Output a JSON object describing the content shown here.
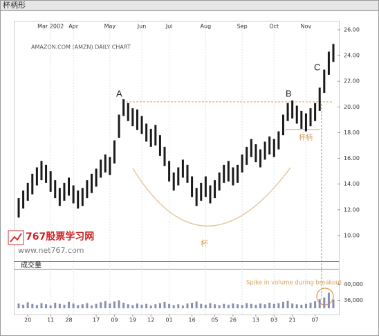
{
  "header": {
    "title": "杯柄形"
  },
  "chart_data": {
    "type": "ohlc",
    "title": "AMAZON.COM (AMZN) DAILY CHART",
    "xlim": [
      0,
      69
    ],
    "month_ticks": [
      {
        "value": 7,
        "label": "Mar 2002"
      },
      {
        "value": 12,
        "label": "Apr"
      },
      {
        "value": 20,
        "label": "May"
      },
      {
        "value": 27,
        "label": "Jun"
      },
      {
        "value": 33,
        "label": "Jul"
      },
      {
        "value": 41,
        "label": "Aug"
      },
      {
        "value": 49,
        "label": "Sep"
      },
      {
        "value": 56,
        "label": "Oct"
      },
      {
        "value": 63,
        "label": "Nov"
      }
    ],
    "xticks": [
      2,
      7,
      11,
      17,
      21,
      25,
      29,
      33,
      38,
      43,
      47,
      52,
      56,
      60,
      65
    ],
    "xtick_labels": [
      "20",
      "11",
      "28",
      "17",
      "09",
      "19",
      "12",
      "01",
      "16",
      "05",
      "26",
      "13",
      "03",
      "21",
      "07"
    ],
    "ylim": [
      9,
      26.5
    ],
    "yticks": [
      {
        "value": 10,
        "label": "10.00"
      },
      {
        "value": 12,
        "label": "12.00"
      },
      {
        "value": 14,
        "label": "14.00"
      },
      {
        "value": 16,
        "label": "16.00"
      },
      {
        "value": 18,
        "label": "18.00"
      },
      {
        "value": 20,
        "label": "20.00"
      },
      {
        "value": 22,
        "label": "22.00"
      },
      {
        "value": 24,
        "label": "24.00"
      },
      {
        "value": 26,
        "label": "26.00"
      }
    ],
    "grid": true,
    "color": "#1a1a1a",
    "high": [
      12.9,
      13.5,
      14.1,
      14.8,
      15.3,
      15.8,
      15.5,
      15.0,
      14.3,
      13.7,
      14.1,
      14.5,
      13.9,
      13.5,
      13.7,
      14.3,
      14.8,
      15.2,
      15.9,
      16.3,
      16.1,
      17.4,
      19.4,
      20.6,
      20.3,
      19.9,
      19.8,
      19.3,
      18.7,
      18.3,
      18.6,
      17.8,
      16.9,
      15.8,
      14.9,
      15.3,
      15.9,
      15.5,
      14.6,
      13.7,
      14.1,
      14.6,
      13.9,
      14.3,
      14.9,
      15.5,
      15.8,
      15.3,
      15.5,
      16.3,
      16.9,
      17.5,
      17.1,
      16.7,
      17.3,
      17.7,
      17.5,
      18.1,
      19.4,
      20.3,
      20.5,
      20.1,
      19.7,
      19.5,
      19.9,
      20.3,
      21.5,
      22.9,
      24.3,
      24.9
    ],
    "low": [
      11.4,
      12.1,
      12.7,
      13.2,
      13.9,
      14.3,
      14.1,
      13.4,
      12.9,
      12.3,
      12.7,
      13.1,
      12.5,
      12.1,
      12.3,
      12.9,
      13.3,
      13.8,
      14.5,
      14.9,
      14.7,
      15.6,
      17.6,
      19.3,
      18.9,
      18.5,
      18.2,
      17.9,
      17.3,
      16.9,
      17.0,
      16.2,
      15.4,
      14.2,
      13.5,
      13.9,
      14.5,
      14.1,
      13.0,
      12.3,
      12.7,
      13.0,
      12.5,
      12.9,
      13.5,
      14.1,
      14.2,
      13.9,
      14.1,
      14.9,
      15.5,
      16.1,
      15.7,
      15.3,
      15.9,
      16.3,
      16.1,
      16.7,
      17.8,
      18.9,
      19.1,
      18.7,
      18.3,
      18.1,
      18.5,
      18.9,
      19.7,
      21.1,
      22.5,
      23.5
    ],
    "volume_ylim": [
      34000,
      44000
    ],
    "volume_ticks": [
      {
        "value": 36000,
        "label": "36,000"
      },
      {
        "value": 40000,
        "label": "40,000"
      }
    ],
    "volume_color": "#8a8fb0",
    "volume": [
      35200,
      34900,
      35500,
      35100,
      34800,
      35300,
      35000,
      34700,
      35400,
      35100,
      34900,
      35600,
      35200,
      34800,
      35000,
      35300,
      34700,
      35100,
      35500,
      35800,
      35200,
      35700,
      36000,
      35400,
      35000,
      34800,
      35200,
      34900,
      35100,
      34700,
      35000,
      35300,
      35600,
      35100,
      34800,
      35000,
      34700,
      35200,
      35400,
      35700,
      35100,
      34900,
      35300,
      35000,
      34800,
      35100,
      34900,
      35200,
      35000,
      34800,
      35300,
      35100,
      34900,
      35200,
      35000,
      35400,
      35100,
      35300,
      35600,
      35900,
      35200,
      35000,
      34900,
      35100,
      35400,
      35800,
      36300,
      36700,
      37900,
      36200
    ]
  },
  "annotations": {
    "a": "A",
    "b": "B",
    "c": "C",
    "cup": "杯",
    "handle": "杯柄",
    "volume_label": "成交量",
    "spike": "Spike in volume during breakout"
  },
  "watermark": {
    "name": "767股票学习网",
    "url": "www.net767.com"
  }
}
